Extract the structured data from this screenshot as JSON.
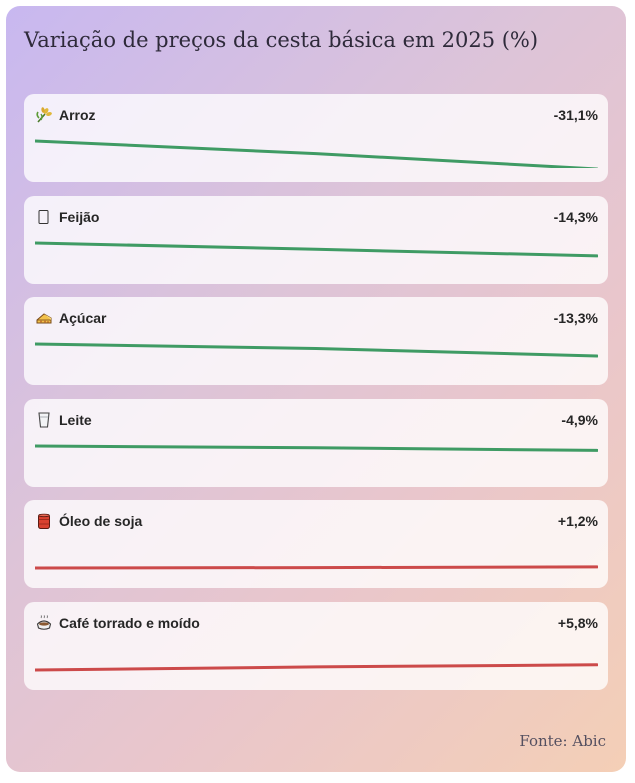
{
  "title": "Variação de preços da cesta básica em 2025 (%)",
  "source": "Fonte: Abic",
  "colors": {
    "decrease": "#3f9b64",
    "increase": "#cc4a4a"
  },
  "chart_data": {
    "type": "line",
    "title": "Variação de preços da cesta básica em 2025 (%)",
    "series": [
      {
        "name": "Arroz",
        "icon": "rice-icon",
        "change_label": "-31,1%",
        "change": -31.1,
        "values": [
          0,
          -14,
          -31.1
        ]
      },
      {
        "name": "Feijão",
        "icon": "beans-icon",
        "change_label": "-14,3%",
        "change": -14.3,
        "values": [
          0,
          -7,
          -14.3
        ]
      },
      {
        "name": "Açúcar",
        "icon": "sugar-icon",
        "change_label": "-13,3%",
        "change": -13.3,
        "values": [
          0,
          -5,
          -13.3
        ]
      },
      {
        "name": "Leite",
        "icon": "milk-icon",
        "change_label": "-4,9%",
        "change": -4.9,
        "values": [
          0,
          -2,
          -4.9
        ]
      },
      {
        "name": "Óleo de soja",
        "icon": "oil-icon",
        "change_label": "+1,2%",
        "change": 1.2,
        "values": [
          0,
          0.5,
          1.2
        ]
      },
      {
        "name": "Café torrado e moído",
        "icon": "coffee-icon",
        "change_label": "+5,8%",
        "change": 5.8,
        "values": [
          0,
          3.5,
          5.8
        ]
      }
    ]
  }
}
